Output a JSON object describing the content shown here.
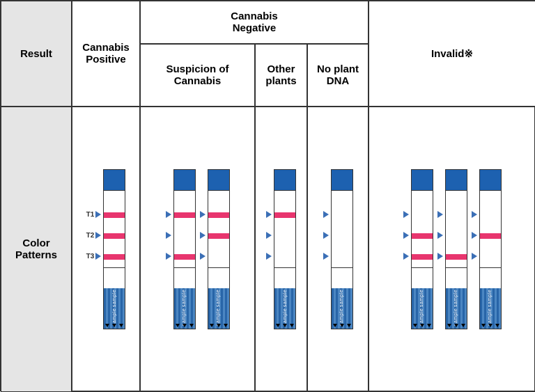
{
  "headers": {
    "result": "Result",
    "patterns": "Color\nPatterns",
    "positive": "Cannabis\nPositive",
    "negative_group": "Cannabis\nNegative",
    "suspicion": "Suspicion of\nCannabis",
    "other": "Other\nplants",
    "noplant": "No plant\nDNA",
    "invalid": "Invalid※"
  },
  "band_labels": [
    "T1",
    "T2",
    "T3"
  ],
  "colors": {
    "strip_cap": "#1d61b0",
    "band_on": "#e8356e",
    "arrow": "#3b6fb6",
    "header_bg": "#e5e5e5",
    "border": "#333333"
  },
  "columns": [
    {
      "key": "positive",
      "show_labels": true,
      "strips": [
        {
          "bands": [
            true,
            true,
            true
          ]
        }
      ]
    },
    {
      "key": "suspicion",
      "show_labels": false,
      "strips": [
        {
          "bands": [
            true,
            false,
            true
          ]
        },
        {
          "bands": [
            true,
            true,
            false
          ]
        }
      ]
    },
    {
      "key": "other",
      "show_labels": false,
      "strips": [
        {
          "bands": [
            true,
            false,
            false
          ]
        }
      ]
    },
    {
      "key": "noplant",
      "show_labels": false,
      "strips": [
        {
          "bands": [
            false,
            false,
            false
          ]
        }
      ]
    },
    {
      "key": "invalid",
      "show_labels": false,
      "strips": [
        {
          "bands": [
            false,
            true,
            true
          ]
        },
        {
          "bands": [
            false,
            false,
            true
          ]
        },
        {
          "bands": [
            false,
            true,
            false
          ]
        }
      ]
    }
  ],
  "sample_label": "sample"
}
